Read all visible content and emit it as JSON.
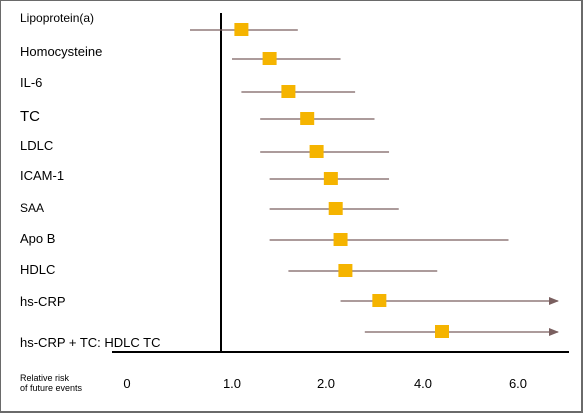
{
  "chart_data": {
    "type": "forest",
    "title": "",
    "xlabel": "Relative risk of future events",
    "xlabel_lines": [
      "Relative risk",
      "of future events"
    ],
    "xticks": [
      "0",
      "1.0",
      "2.0",
      "4.0",
      "6.0"
    ],
    "reference_value": "1.0",
    "grid": false,
    "legend": "none",
    "colors": {
      "marker": "#f5b400",
      "whisker": "#7a5f5f",
      "axis": "#000000"
    },
    "rows": [
      {
        "name": "Lipoprotein(a)",
        "low": 0.6,
        "point": 1.1,
        "high": 1.7
      },
      {
        "name": "Homocysteine",
        "low": 1.0,
        "point": 1.4,
        "high": 2.3
      },
      {
        "name": "IL-6",
        "low": 1.1,
        "point": 1.6,
        "high": 2.6
      },
      {
        "name": "TC",
        "low": 1.3,
        "point": 1.8,
        "high": 3.0
      },
      {
        "name": "LDLC",
        "low": 1.3,
        "point": 1.9,
        "high": 3.3
      },
      {
        "name": "ICAM-1",
        "low": 1.4,
        "point": 2.1,
        "high": 3.3
      },
      {
        "name": "SAA",
        "low": 1.4,
        "point": 2.2,
        "high": 3.5
      },
      {
        "name": "Apo B",
        "low": 1.4,
        "point": 2.3,
        "high": 5.8
      },
      {
        "name": "HDLC",
        "low": 1.6,
        "point": 2.4,
        "high": 4.3
      },
      {
        "name": "hs-CRP",
        "low": 2.3,
        "point": 3.1,
        "high": 6.6,
        "arrow": true
      },
      {
        "name": "hs-CRP + TC: HDLC TC",
        "low": 2.8,
        "point": 4.4,
        "high": 6.6,
        "arrow": true
      }
    ]
  }
}
